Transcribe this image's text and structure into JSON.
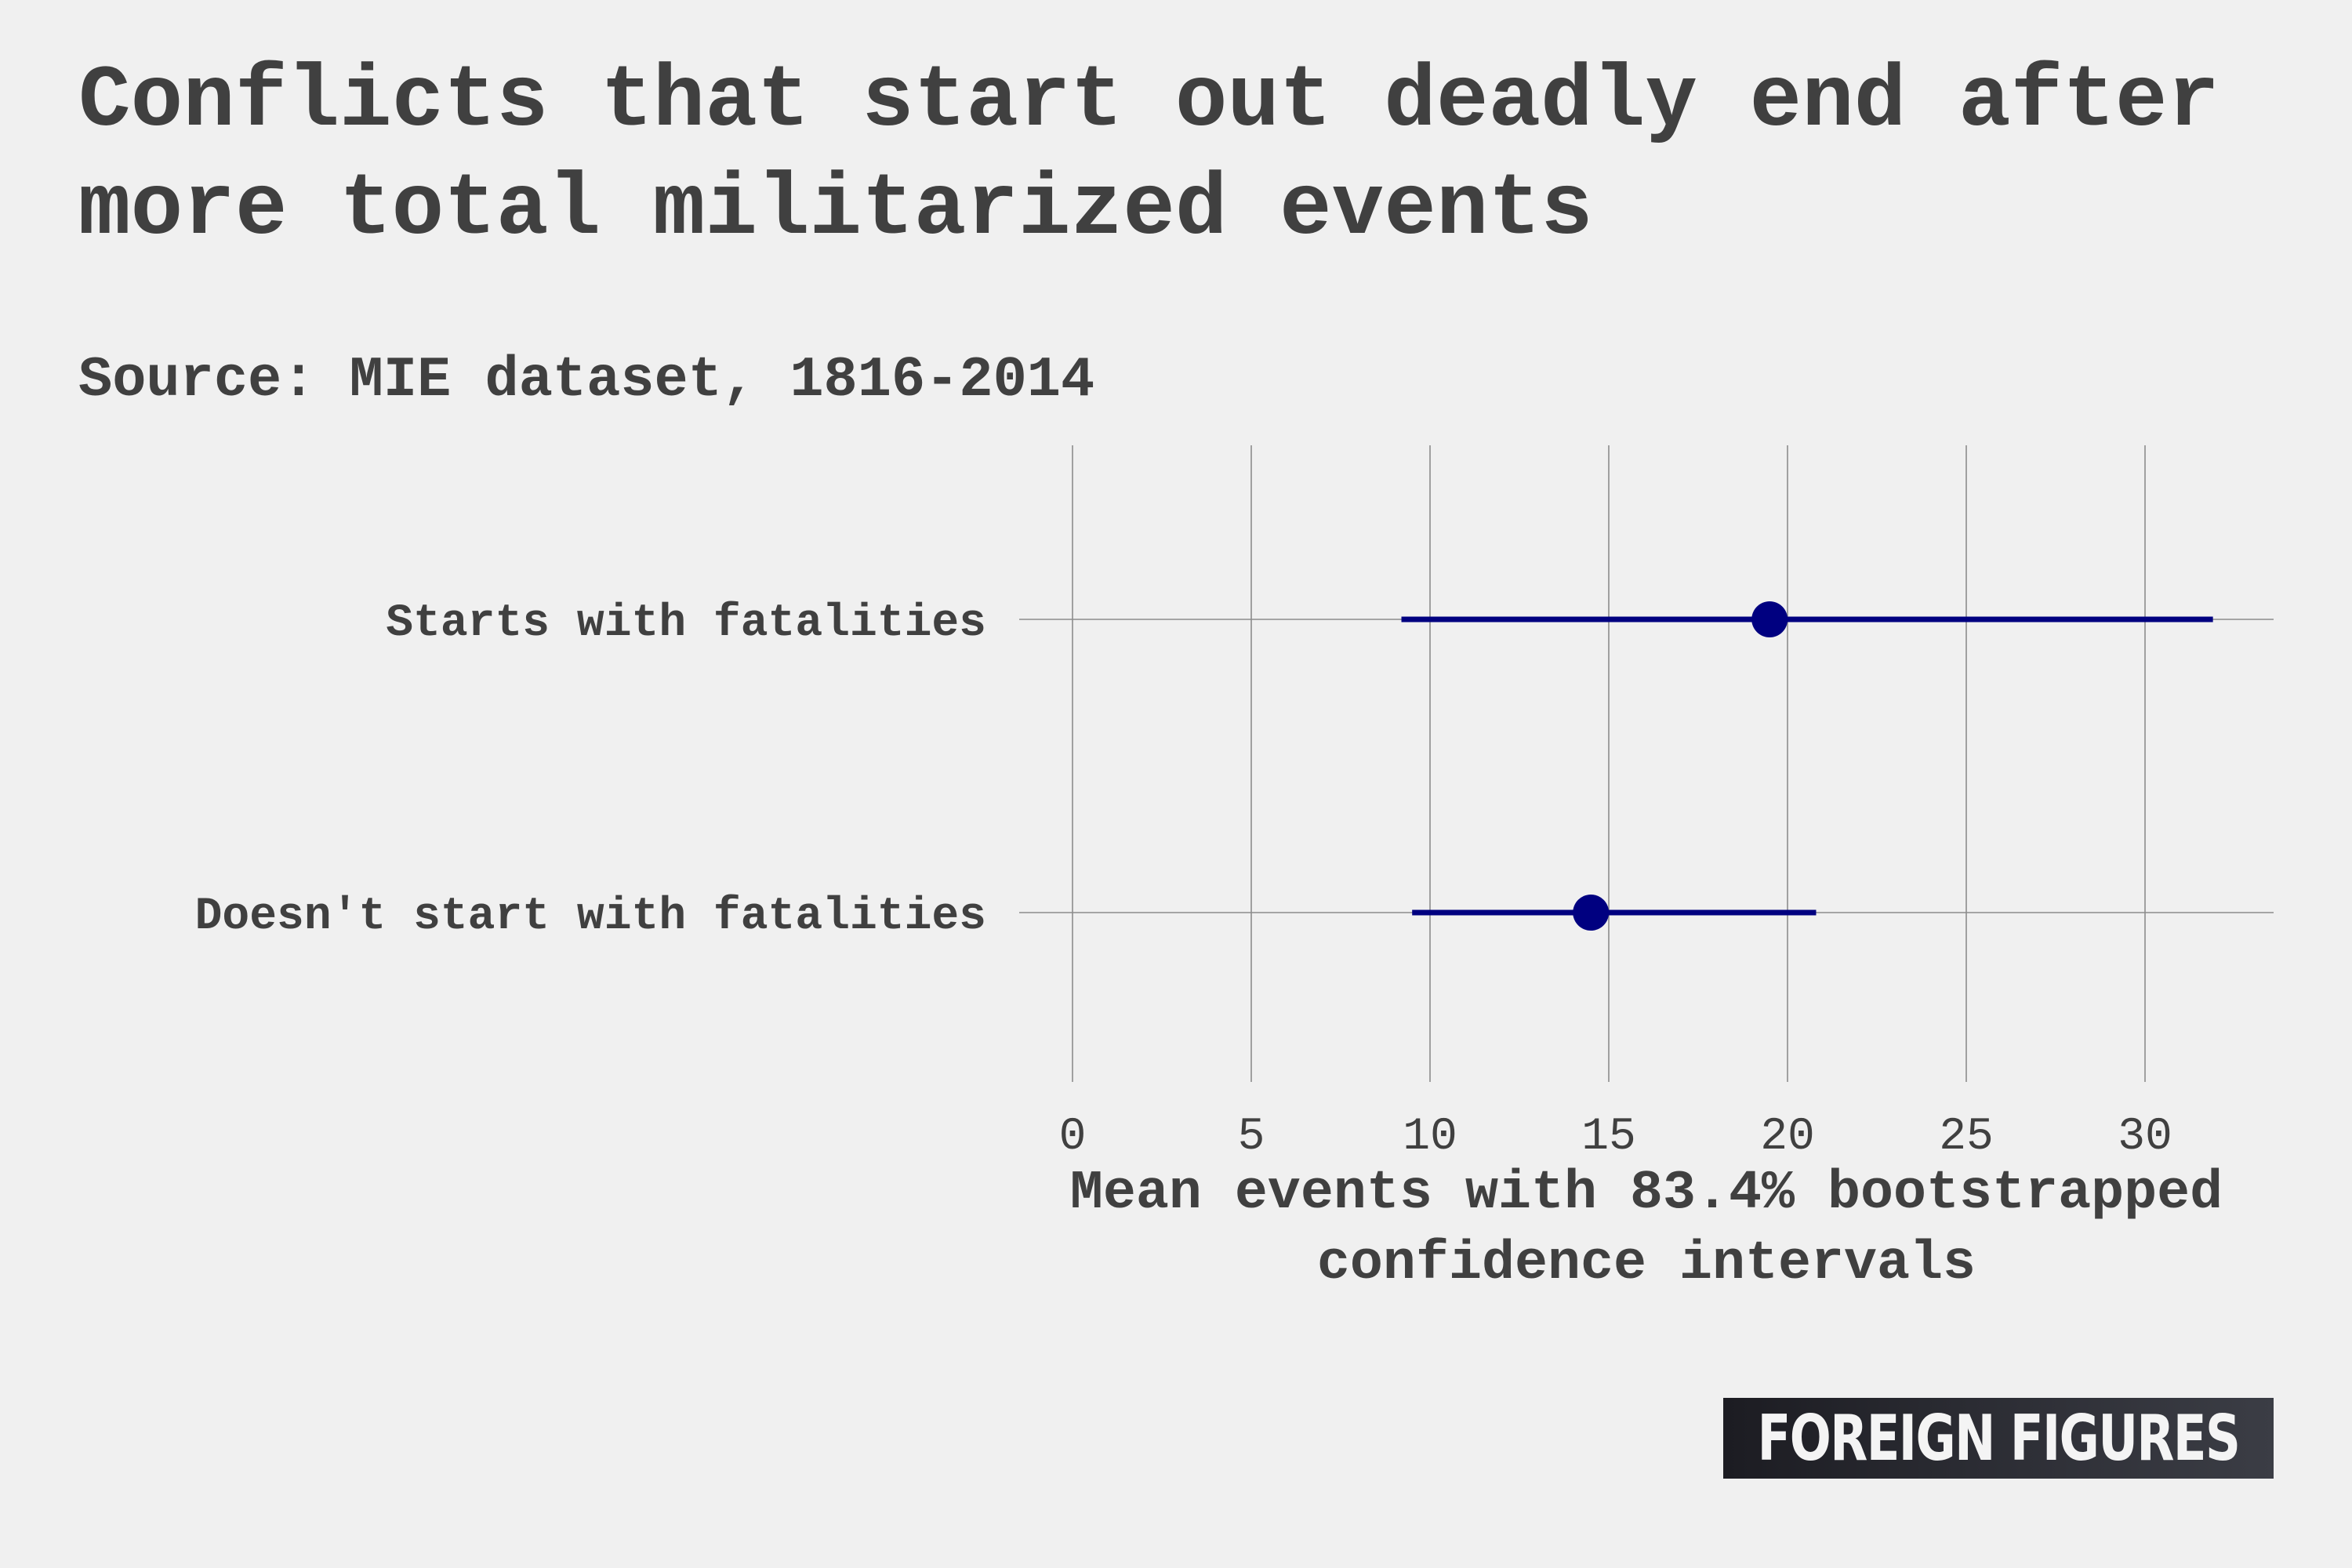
{
  "header": {
    "title": "Conflicts that start out deadly end after more total militarized events",
    "subtitle": "Source: MIE dataset, 1816-2014"
  },
  "brand": {
    "label": "FOREIGN FIGURES"
  },
  "colors": {
    "background": "#f0f0f0",
    "text": "#404040",
    "series": "#000080",
    "grid": "#8c8c8c"
  },
  "chart_data": {
    "type": "scatter",
    "title": "Conflicts that start out deadly end after more total militarized events",
    "subtitle": "Source: MIE dataset, 1816-2014",
    "xlabel": "Mean events with 83.4% bootstrapped confidence intervals",
    "ylabel": "",
    "xlim": [
      -0.3,
      33.8
    ],
    "xticks": [
      0,
      5,
      10,
      15,
      20,
      25,
      30
    ],
    "grid": true,
    "legend": "none",
    "categories": [
      "Starts with fatalities",
      "Doesn't start with fatalities"
    ],
    "series": [
      {
        "points": [
          {
            "category": "Starts with fatalities",
            "mean": 19.5,
            "lower": 9.2,
            "upper": 31.9
          },
          {
            "category": "Doesn't start with fatalities",
            "mean": 14.5,
            "lower": 9.5,
            "upper": 20.8
          }
        ]
      }
    ]
  }
}
